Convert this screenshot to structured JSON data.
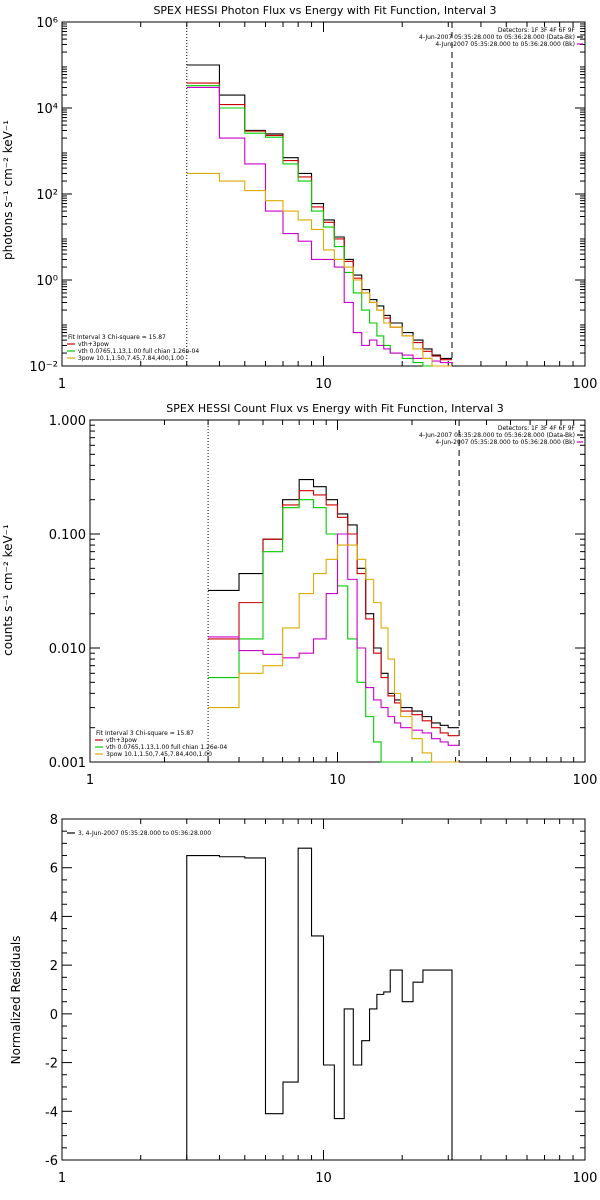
{
  "chart_data": [
    {
      "type": "line",
      "title": "SPEX HESSI Photon Flux vs Energy with Fit Function, Interval 3",
      "ylabel": "photons s⁻¹ cm⁻² keV⁻¹",
      "xlabel": "",
      "xscale": "log",
      "yscale": "log",
      "xlim": [
        1,
        100
      ],
      "ylim": [
        0.01,
        1000000
      ],
      "xticks": [
        {
          "v": 1,
          "label": "1"
        },
        {
          "v": 10,
          "label": "10"
        },
        {
          "v": 100,
          "label": "100"
        }
      ],
      "yticks": [
        {
          "v": 0.01,
          "label": "10⁻²"
        },
        {
          "v": 1,
          "label": "10⁰"
        },
        {
          "v": 100,
          "label": "10²"
        },
        {
          "v": 10000,
          "label": "10⁴"
        },
        {
          "v": 1000000,
          "label": "10⁶"
        }
      ],
      "vlines": [
        {
          "x": 3.0,
          "style": "dotted"
        },
        {
          "x": 31.0,
          "style": "dashed"
        }
      ],
      "info_lines": [
        {
          "text": "Detectors: 1F 3F 4F 6F 9F",
          "color": ""
        },
        {
          "text": "4-Jun-2007 05:35:28.000 to 05:36:28.000 (Data-Bk)",
          "color": "#000000"
        },
        {
          "text": "4-Jun-2007 05:35:28.000 to 05:36:28.000 (Bk)",
          "color": "#cc00cc"
        }
      ],
      "legend_lines": [
        {
          "text": "Fit Interval 3   Chi-square = 15.87",
          "color": "#000000"
        },
        {
          "text": "vth+3pow",
          "color": "#cc0000"
        },
        {
          "text": "vth 0.0765,1.13,1.00  full chian 1.26e-04",
          "color": "#00cc00"
        },
        {
          "text": "3pow 10.1,1.50,7.45,7.84,400,1.00",
          "color": "#ddaa00"
        }
      ],
      "edges": [
        3,
        4,
        5,
        6,
        7,
        8,
        9,
        10,
        11,
        12,
        13,
        14,
        15,
        16,
        17,
        18,
        20,
        22,
        24,
        26,
        28,
        31
      ],
      "series": [
        {
          "color": "#000000",
          "values": [
            100000,
            20000,
            3000,
            2500,
            700,
            300,
            60,
            25,
            10,
            3,
            1.3,
            0.6,
            0.35,
            0.25,
            0.15,
            0.1,
            0.06,
            0.04,
            0.025,
            0.018,
            0.015
          ]
        },
        {
          "color": "#cc0000",
          "values": [
            38000,
            12000,
            2900,
            2300,
            600,
            250,
            50,
            22,
            9,
            2.7,
            1.1,
            0.5,
            0.3,
            0.2,
            0.13,
            0.08,
            0.05,
            0.035,
            0.022,
            0.017,
            0.014
          ]
        },
        {
          "color": "#00cc00",
          "values": [
            33000,
            10000,
            2600,
            2100,
            500,
            200,
            40,
            17,
            6,
            1.5,
            0.5,
            0.2,
            0.1,
            0.05,
            0.03,
            0.02,
            0.015,
            0.012,
            0.01,
            0.01,
            0.01
          ]
        },
        {
          "color": "#cc00cc",
          "values": [
            30000,
            2000,
            500,
            40,
            12,
            8,
            3,
            3,
            2,
            0.3,
            0.06,
            0.03,
            0.04,
            0.03,
            0.025,
            0.02,
            0.018,
            0.015,
            0.015,
            0.013,
            0.012
          ]
        },
        {
          "color": "#ddaa00",
          "values": [
            300,
            200,
            120,
            70,
            40,
            25,
            15,
            5,
            3,
            2,
            1,
            0.5,
            0.3,
            0.2,
            0.1,
            0.08,
            0.05,
            0.025,
            0.015,
            0.01,
            0.01
          ]
        }
      ]
    },
    {
      "type": "line",
      "title": "SPEX HESSI Count Flux vs Energy with Fit Function, Interval 3",
      "ylabel": "counts s⁻¹ cm⁻² keV⁻¹",
      "xlabel": "",
      "xscale": "log",
      "yscale": "log",
      "xlim": [
        1,
        100
      ],
      "ylim": [
        0.001,
        1.0
      ],
      "xticks": [
        {
          "v": 1,
          "label": "1"
        },
        {
          "v": 10,
          "label": "10"
        },
        {
          "v": 100,
          "label": "100"
        }
      ],
      "yticks": [
        {
          "v": 0.001,
          "label": "0.001"
        },
        {
          "v": 0.01,
          "label": "0.010"
        },
        {
          "v": 0.1,
          "label": "0.100"
        },
        {
          "v": 1.0,
          "label": "1.000"
        }
      ],
      "vlines": [
        {
          "x": 3.0,
          "style": "dotted"
        },
        {
          "x": 31.0,
          "style": "dashed"
        }
      ],
      "info_lines": [
        {
          "text": "Detectors: 1F 3F 4F 6F 9F",
          "color": ""
        },
        {
          "text": "4-Jun-2007 05:35:28.000 to 05:36:28.000 (Data-Bk)",
          "color": "#000000"
        },
        {
          "text": "4-Jun-2007 05:35:28.000 to 05:36:28.000 (Bk)",
          "color": "#cc00cc"
        }
      ],
      "legend_lines": [
        {
          "text": "Fit Interval 3   Chi-square = 15.87",
          "color": "#000000"
        },
        {
          "text": "vth+3pow",
          "color": "#cc0000"
        },
        {
          "text": "vth 0.0765,1.13,1.00  full chian 1.26e-04",
          "color": "#00cc00"
        },
        {
          "text": "3pow 10.1,1.50,7.45,7.84,400,1.00",
          "color": "#ddaa00"
        }
      ],
      "edges": [
        3,
        4,
        5,
        6,
        7,
        8,
        9,
        10,
        11,
        12,
        13,
        14,
        15,
        16,
        17,
        18,
        20,
        22,
        24,
        26,
        28,
        31
      ],
      "series": [
        {
          "color": "#000000",
          "values": [
            0.032,
            0.045,
            0.09,
            0.2,
            0.3,
            0.26,
            0.2,
            0.15,
            0.12,
            0.05,
            0.02,
            0.01,
            0.006,
            0.004,
            0.0035,
            0.003,
            0.0028,
            0.0025,
            0.0022,
            0.0021,
            0.002
          ]
        },
        {
          "color": "#cc0000",
          "values": [
            0.012,
            0.025,
            0.09,
            0.18,
            0.24,
            0.22,
            0.18,
            0.14,
            0.1,
            0.045,
            0.018,
            0.009,
            0.0055,
            0.0038,
            0.0033,
            0.0028,
            0.0026,
            0.0023,
            0.002,
            0.0018,
            0.0017
          ]
        },
        {
          "color": "#00cc00",
          "values": [
            0.0055,
            0.012,
            0.07,
            0.17,
            0.2,
            0.17,
            0.1,
            0.035,
            0.012,
            0.005,
            0.0025,
            0.0015,
            0.001,
            0.001,
            0.001,
            0.001,
            0.001,
            0.001,
            0.001,
            0.001,
            0.001
          ]
        },
        {
          "color": "#cc00cc",
          "values": [
            0.0125,
            0.0095,
            0.0088,
            0.0082,
            0.009,
            0.012,
            0.03,
            0.1,
            0.04,
            0.01,
            0.0045,
            0.0035,
            0.003,
            0.0025,
            0.0022,
            0.002,
            0.0019,
            0.0018,
            0.0016,
            0.0015,
            0.0014
          ]
        },
        {
          "color": "#ddaa00",
          "values": [
            0.003,
            0.006,
            0.007,
            0.015,
            0.03,
            0.045,
            0.06,
            0.08,
            0.08,
            0.06,
            0.04,
            0.025,
            0.015,
            0.008,
            0.004,
            0.0025,
            0.0016,
            0.0012,
            0.001,
            0.001,
            0.001
          ]
        }
      ]
    },
    {
      "type": "line",
      "title": "",
      "ylabel": "Normalized Residuals",
      "xlabel": "",
      "xscale": "log",
      "yscale": "linear",
      "xlim": [
        1,
        100
      ],
      "ylim": [
        -6,
        8
      ],
      "xticks": [
        {
          "v": 1,
          "label": "1"
        },
        {
          "v": 10,
          "label": "10"
        },
        {
          "v": 100,
          "label": "100"
        }
      ],
      "yticks": [
        {
          "v": -6,
          "label": "-6"
        },
        {
          "v": -4,
          "label": "-4"
        },
        {
          "v": -2,
          "label": "-2"
        },
        {
          "v": 0,
          "label": "0"
        },
        {
          "v": 2,
          "label": "2"
        },
        {
          "v": 4,
          "label": "4"
        },
        {
          "v": 6,
          "label": "6"
        },
        {
          "v": 8,
          "label": "8"
        }
      ],
      "vlines": [],
      "info_lines": [],
      "legend_lines": [
        {
          "text": "3,  4-Jun-2007 05:35:28.000 to 05:36:28.000",
          "color": "#000000"
        }
      ],
      "edges": [
        3,
        4,
        5,
        6,
        7,
        8,
        9,
        10,
        11,
        12,
        13,
        14,
        15,
        16,
        17,
        18,
        20,
        22,
        24,
        26,
        28,
        31
      ],
      "series": [
        {
          "color": "#000000",
          "values": [
            6.5,
            6.45,
            6.4,
            -4.1,
            -2.8,
            6.8,
            3.2,
            -2.1,
            -4.3,
            0.2,
            -2.1,
            -1.1,
            0.2,
            0.8,
            0.9,
            1.8,
            0.5,
            1.3,
            1.8,
            1.8,
            1.8
          ]
        }
      ]
    }
  ]
}
